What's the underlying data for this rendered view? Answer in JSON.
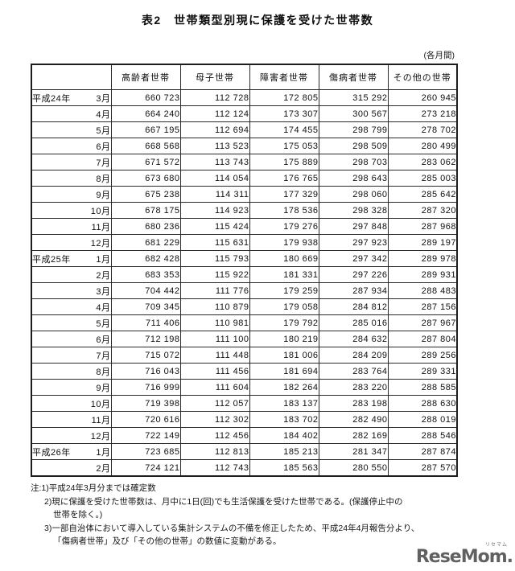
{
  "title": "表2　世帯類型別現に保護を受けた世帯数",
  "unit_note": "(各月間)",
  "table": {
    "columns": [
      "高齢者世帯",
      "母子世帯",
      "障害者世帯",
      "傷病者世帯",
      "その他の世帯"
    ],
    "rows": [
      {
        "era": "平成24年",
        "month": "3月",
        "values": [
          "660 723",
          "112 728",
          "172 805",
          "315 292",
          "260 945"
        ]
      },
      {
        "era": "",
        "month": "4月",
        "values": [
          "664 240",
          "112 124",
          "173 307",
          "300 567",
          "273 218"
        ]
      },
      {
        "era": "",
        "month": "5月",
        "values": [
          "667 195",
          "112 694",
          "174 455",
          "298 799",
          "278 702"
        ]
      },
      {
        "era": "",
        "month": "6月",
        "values": [
          "668 568",
          "113 523",
          "175 053",
          "298 509",
          "280 499"
        ]
      },
      {
        "era": "",
        "month": "7月",
        "values": [
          "671 572",
          "113 743",
          "175 889",
          "298 703",
          "283 062"
        ]
      },
      {
        "era": "",
        "month": "8月",
        "values": [
          "673 680",
          "114 054",
          "176 765",
          "298 643",
          "285 003"
        ]
      },
      {
        "era": "",
        "month": "9月",
        "values": [
          "675 238",
          "114 311",
          "177 329",
          "298 060",
          "285 642"
        ]
      },
      {
        "era": "",
        "month": "10月",
        "values": [
          "678 175",
          "114 923",
          "178 536",
          "298 328",
          "287 320"
        ]
      },
      {
        "era": "",
        "month": "11月",
        "values": [
          "680 236",
          "115 424",
          "179 276",
          "297 848",
          "287 968"
        ]
      },
      {
        "era": "",
        "month": "12月",
        "values": [
          "681 229",
          "115 631",
          "179 938",
          "297 923",
          "289 197"
        ]
      },
      {
        "era": "平成25年",
        "month": "1月",
        "values": [
          "682 428",
          "115 793",
          "180 669",
          "297 342",
          "289 978"
        ]
      },
      {
        "era": "",
        "month": "2月",
        "values": [
          "683 353",
          "115 922",
          "181 331",
          "297 226",
          "289 931"
        ]
      },
      {
        "era": "",
        "month": "3月",
        "values": [
          "704 442",
          "111 776",
          "179 259",
          "287 934",
          "288 483"
        ]
      },
      {
        "era": "",
        "month": "4月",
        "values": [
          "709 345",
          "110 879",
          "179 058",
          "284 812",
          "287 156"
        ]
      },
      {
        "era": "",
        "month": "5月",
        "values": [
          "711 406",
          "110 981",
          "179 792",
          "285 016",
          "287 967"
        ]
      },
      {
        "era": "",
        "month": "6月",
        "values": [
          "712 198",
          "111 100",
          "180 219",
          "284 632",
          "287 804"
        ]
      },
      {
        "era": "",
        "month": "7月",
        "values": [
          "715 072",
          "111 448",
          "181 006",
          "284 209",
          "289 256"
        ]
      },
      {
        "era": "",
        "month": "8月",
        "values": [
          "716 043",
          "111 456",
          "181 694",
          "283 764",
          "289 331"
        ]
      },
      {
        "era": "",
        "month": "9月",
        "values": [
          "716 999",
          "111 604",
          "182 264",
          "283 220",
          "288 585"
        ]
      },
      {
        "era": "",
        "month": "10月",
        "values": [
          "719 398",
          "112 057",
          "183 137",
          "283 198",
          "288 630"
        ]
      },
      {
        "era": "",
        "month": "11月",
        "values": [
          "720 616",
          "112 302",
          "183 702",
          "282 490",
          "288 019"
        ]
      },
      {
        "era": "",
        "month": "12月",
        "values": [
          "722 149",
          "112 456",
          "184 402",
          "282 169",
          "288 546"
        ]
      },
      {
        "era": "平成26年",
        "month": "1月",
        "values": [
          "723 685",
          "112 813",
          "185 213",
          "281 347",
          "287 874"
        ]
      },
      {
        "era": "",
        "month": "2月",
        "values": [
          "724 121",
          "112 743",
          "185 563",
          "280 550",
          "287 570"
        ]
      }
    ]
  },
  "footnotes": [
    "注:1)平成24年3月分までは確定数",
    "2)現に保護を受けた世帯数は、月中に1日(回)でも生活保護を受けた世帯である。(保護停止中の",
    "世帯を除く。)",
    "3)一部自治体において導入している集計システムの不備を修正したため、平成24年4月報告分より、",
    "「傷病者世帯」及び「その他の世帯」の数値に変動がある。"
  ],
  "watermark": {
    "text": "ReseMom.",
    "ruby": "リセマム"
  }
}
